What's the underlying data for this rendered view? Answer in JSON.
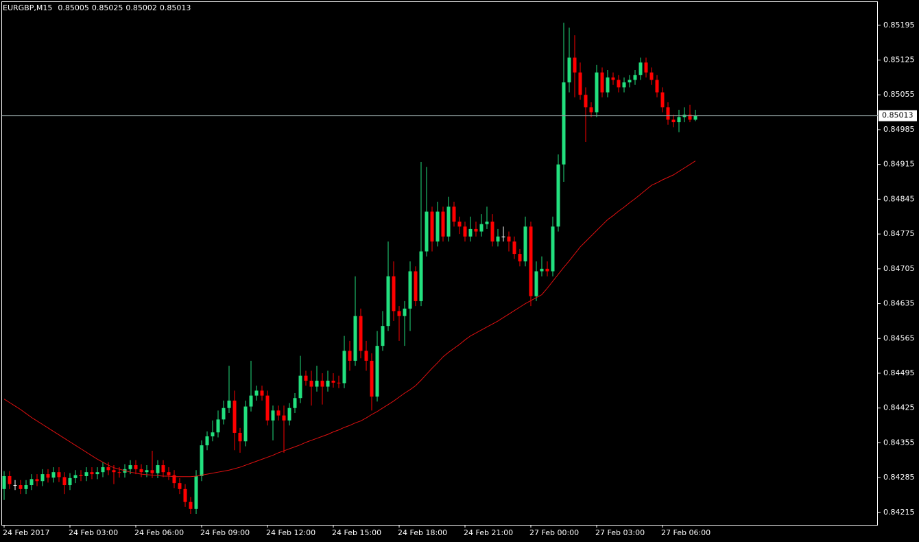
{
  "chart_data": {
    "type": "candlestick",
    "symbol": "EURGBP,M15",
    "categories": [
      "24 Feb 2017",
      null,
      null,
      null,
      null,
      null,
      null,
      null,
      null,
      null,
      null,
      null,
      "24 Feb 03:00",
      null,
      null,
      null,
      null,
      null,
      null,
      null,
      null,
      null,
      null,
      null,
      "24 Feb 06:00",
      null,
      null,
      null,
      null,
      null,
      null,
      null,
      null,
      null,
      null,
      null,
      "24 Feb 09:00",
      null,
      null,
      null,
      null,
      null,
      null,
      null,
      null,
      null,
      null,
      null,
      "24 Feb 12:00",
      null,
      null,
      null,
      null,
      null,
      null,
      null,
      null,
      null,
      null,
      null,
      "24 Feb 15:00",
      null,
      null,
      null,
      null,
      null,
      null,
      null,
      null,
      null,
      null,
      null,
      "24 Feb 18:00",
      null,
      null,
      null,
      null,
      null,
      null,
      null,
      null,
      null,
      null,
      null,
      "24 Feb 21:00",
      null,
      null,
      null,
      null,
      null,
      null,
      null,
      null,
      null,
      null,
      null,
      "27 Feb 00:00",
      null,
      null,
      null,
      null,
      null,
      null,
      null,
      null,
      null,
      null,
      null,
      "27 Feb 03:00",
      null,
      null,
      null,
      null,
      null,
      null,
      null,
      null,
      null,
      null,
      null,
      "27 Feb 06:00",
      null,
      null,
      null,
      null,
      null,
      null
    ],
    "open": [
      0.84262,
      0.84288,
      0.8427,
      0.8427,
      0.84262,
      0.8427,
      0.84282,
      0.84278,
      0.84292,
      0.84285,
      0.84296,
      0.84286,
      0.8427,
      0.84284,
      0.8429,
      0.84288,
      0.84296,
      0.84292,
      0.84296,
      0.84306,
      0.843,
      0.84296,
      0.84295,
      0.84302,
      0.8431,
      0.84302,
      0.84296,
      0.843,
      0.84294,
      0.8431,
      0.84296,
      0.8429,
      0.84274,
      0.84262,
      0.84236,
      0.84222,
      0.84288,
      0.8435,
      0.84368,
      0.84376,
      0.84402,
      0.84425,
      0.8444,
      0.84375,
      0.84358,
      0.84428,
      0.8445,
      0.8446,
      0.8445,
      0.844,
      0.8442,
      0.8441,
      0.844,
      0.84425,
      0.84445,
      0.8449,
      0.8448,
      0.84468,
      0.8448,
      0.84468,
      0.8448,
      0.84476,
      0.84475,
      0.8454,
      0.8452,
      0.8461,
      0.8454,
      0.8452,
      0.84448,
      0.8455,
      0.8459,
      0.8469,
      0.8462,
      0.8461,
      0.84625,
      0.847,
      0.8464,
      0.8474,
      0.8482,
      0.8476,
      0.8482,
      0.8477,
      0.8483,
      0.848,
      0.8479,
      0.8477,
      0.84785,
      0.8478,
      0.84795,
      0.848,
      0.8476,
      0.8477,
      0.8477,
      0.8476,
      0.84735,
      0.8472,
      0.8479,
      0.8465,
      0.847,
      0.84705,
      0.847,
      0.8479,
      0.84915,
      0.8508,
      0.8513,
      0.851,
      0.85055,
      0.8503,
      0.8502,
      0.851,
      0.8506,
      0.8509,
      0.85085,
      0.8507,
      0.8508,
      0.85085,
      0.85095,
      0.8512,
      0.851,
      0.85085,
      0.8506,
      0.8503,
      0.85005,
      0.85,
      0.8501,
      0.85015,
      0.85005
    ],
    "high": [
      0.84298,
      0.84298,
      0.8428,
      0.8428,
      0.8428,
      0.84292,
      0.84292,
      0.84302,
      0.84302,
      0.84306,
      0.84306,
      0.84296,
      0.84294,
      0.843,
      0.843,
      0.84306,
      0.84306,
      0.84306,
      0.84316,
      0.84316,
      0.8431,
      0.84306,
      0.84312,
      0.8432,
      0.8432,
      0.84312,
      0.8431,
      0.84339,
      0.8432,
      0.8432,
      0.84306,
      0.843,
      0.84284,
      0.84272,
      0.84246,
      0.843,
      0.8436,
      0.84378,
      0.844,
      0.8442,
      0.8444,
      0.8451,
      0.8446,
      0.84385,
      0.8444,
      0.8452,
      0.8447,
      0.8447,
      0.8446,
      0.8443,
      0.8443,
      0.8443,
      0.84435,
      0.84455,
      0.8453,
      0.845,
      0.845,
      0.8451,
      0.84495,
      0.845,
      0.84495,
      0.8449,
      0.8457,
      0.8456,
      0.8469,
      0.84625,
      0.8456,
      0.84535,
      0.8458,
      0.8462,
      0.8476,
      0.8472,
      0.8463,
      0.8464,
      0.8472,
      0.8471,
      0.8492,
      0.8491,
      0.8483,
      0.8484,
      0.8483,
      0.8485,
      0.8484,
      0.8481,
      0.848,
      0.8481,
      0.848,
      0.84815,
      0.8483,
      0.84815,
      0.84785,
      0.8479,
      0.8478,
      0.8477,
      0.84745,
      0.8481,
      0.848,
      0.8472,
      0.8473,
      0.8472,
      0.8481,
      0.84935,
      0.852,
      0.8519,
      0.85175,
      0.8512,
      0.8507,
      0.8504,
      0.85115,
      0.8511,
      0.85105,
      0.851,
      0.85095,
      0.8509,
      0.85095,
      0.85105,
      0.8513,
      0.8513,
      0.8511,
      0.85095,
      0.8507,
      0.8504,
      0.85015,
      0.85025,
      0.8503,
      0.85035,
      0.85025
    ],
    "low": [
      0.8424,
      0.84262,
      0.8426,
      0.84252,
      0.84252,
      0.8426,
      0.84268,
      0.84268,
      0.84275,
      0.84275,
      0.84276,
      0.84252,
      0.8426,
      0.84274,
      0.84278,
      0.84278,
      0.84282,
      0.84282,
      0.84286,
      0.8429,
      0.84272,
      0.84285,
      0.84285,
      0.84292,
      0.84292,
      0.84286,
      0.84286,
      0.84284,
      0.84284,
      0.84286,
      0.8428,
      0.84264,
      0.84252,
      0.84226,
      0.84212,
      0.84212,
      0.84278,
      0.8434,
      0.84358,
      0.84366,
      0.84392,
      0.84415,
      0.8434,
      0.84335,
      0.84348,
      0.84418,
      0.8444,
      0.8444,
      0.8439,
      0.8436,
      0.844,
      0.84335,
      0.8439,
      0.84415,
      0.84435,
      0.8447,
      0.8443,
      0.84458,
      0.84432,
      0.84458,
      0.84466,
      0.84465,
      0.84465,
      0.845,
      0.8451,
      0.84525,
      0.845,
      0.8442,
      0.84438,
      0.8454,
      0.8458,
      0.846,
      0.8456,
      0.8455,
      0.8458,
      0.8463,
      0.8463,
      0.8473,
      0.8474,
      0.8475,
      0.8476,
      0.8476,
      0.8479,
      0.84775,
      0.8476,
      0.8476,
      0.8477,
      0.8477,
      0.84785,
      0.8475,
      0.8475,
      0.8476,
      0.8474,
      0.84725,
      0.8471,
      0.8471,
      0.8463,
      0.8464,
      0.8469,
      0.8469,
      0.8469,
      0.8478,
      0.8488,
      0.8506,
      0.8505,
      0.85045,
      0.8496,
      0.8501,
      0.8501,
      0.8505,
      0.8505,
      0.85075,
      0.8506,
      0.8506,
      0.8507,
      0.85075,
      0.85085,
      0.8509,
      0.85075,
      0.8505,
      0.8502,
      0.84995,
      0.8499,
      0.8498,
      0.85,
      0.85,
      0.85002
    ],
    "close": [
      0.84288,
      0.84272,
      0.8427,
      0.84262,
      0.8427,
      0.84282,
      0.84278,
      0.84292,
      0.84285,
      0.84296,
      0.84286,
      0.8427,
      0.84284,
      0.8429,
      0.84288,
      0.84296,
      0.84292,
      0.84296,
      0.84306,
      0.843,
      0.84296,
      0.84295,
      0.84302,
      0.8431,
      0.84302,
      0.84296,
      0.843,
      0.84294,
      0.8431,
      0.84296,
      0.8429,
      0.84274,
      0.84262,
      0.84236,
      0.84222,
      0.84288,
      0.8435,
      0.84368,
      0.84376,
      0.84402,
      0.84425,
      0.8444,
      0.84375,
      0.84358,
      0.84428,
      0.8445,
      0.8446,
      0.8445,
      0.844,
      0.8442,
      0.8441,
      0.844,
      0.84425,
      0.84445,
      0.8449,
      0.8448,
      0.84468,
      0.8448,
      0.84468,
      0.8448,
      0.84476,
      0.84475,
      0.8454,
      0.8452,
      0.8461,
      0.8454,
      0.8452,
      0.84448,
      0.8455,
      0.8459,
      0.8469,
      0.8462,
      0.8461,
      0.84625,
      0.847,
      0.8464,
      0.8474,
      0.8482,
      0.8476,
      0.8482,
      0.8477,
      0.8483,
      0.848,
      0.8479,
      0.8477,
      0.84785,
      0.8478,
      0.84795,
      0.848,
      0.8476,
      0.8477,
      0.8477,
      0.8476,
      0.84735,
      0.8472,
      0.8479,
      0.8465,
      0.847,
      0.84705,
      0.847,
      0.8479,
      0.84915,
      0.8508,
      0.8513,
      0.851,
      0.85055,
      0.8503,
      0.8502,
      0.851,
      0.8506,
      0.8509,
      0.85085,
      0.8507,
      0.8508,
      0.85085,
      0.85095,
      0.8512,
      0.851,
      0.85085,
      0.8506,
      0.8503,
      0.85005,
      0.85,
      0.8501,
      0.85015,
      0.85005,
      0.85013
    ],
    "moving_average": {
      "color": "#e01010",
      "values": [
        0.84443,
        0.84436,
        0.84429,
        0.84422,
        0.84414,
        0.84406,
        0.84399,
        0.84392,
        0.84385,
        0.84378,
        0.84371,
        0.84364,
        0.84357,
        0.8435,
        0.84343,
        0.84336,
        0.84329,
        0.84322,
        0.84316,
        0.8431,
        0.84305,
        0.84302,
        0.84299,
        0.84296,
        0.84294,
        0.84292,
        0.84291,
        0.8429,
        0.84289,
        0.84288,
        0.84288,
        0.84287,
        0.84287,
        0.84287,
        0.84287,
        0.84288,
        0.8429,
        0.84292,
        0.84294,
        0.84296,
        0.84298,
        0.843,
        0.84303,
        0.84306,
        0.8431,
        0.84314,
        0.84318,
        0.84322,
        0.84326,
        0.8433,
        0.84335,
        0.84339,
        0.84343,
        0.84347,
        0.84351,
        0.84356,
        0.8436,
        0.84364,
        0.84368,
        0.84372,
        0.84377,
        0.84381,
        0.84386,
        0.8439,
        0.84395,
        0.84399,
        0.84405,
        0.84412,
        0.84418,
        0.84425,
        0.84432,
        0.84439,
        0.84447,
        0.84455,
        0.84462,
        0.8447,
        0.84481,
        0.84493,
        0.84505,
        0.84516,
        0.84528,
        0.84537,
        0.84545,
        0.84553,
        0.84562,
        0.8457,
        0.84576,
        0.84582,
        0.84588,
        0.84594,
        0.846,
        0.84607,
        0.84614,
        0.84621,
        0.84628,
        0.84635,
        0.84641,
        0.84647,
        0.84653,
        0.84666,
        0.8468,
        0.84694,
        0.84708,
        0.84721,
        0.84735,
        0.84749,
        0.8476,
        0.84771,
        0.84782,
        0.84793,
        0.84804,
        0.84812,
        0.84821,
        0.84829,
        0.84838,
        0.84846,
        0.84855,
        0.84864,
        0.84873,
        0.84878,
        0.84884,
        0.84889,
        0.84894,
        0.84901,
        0.84908,
        0.84915,
        0.84922
      ]
    },
    "up_color": "#22e07e",
    "down_color": "#ff0000",
    "doji_color": "#ffffff",
    "price_line_color": "#8c9c9c",
    "ylim": [
      0.8419,
      0.85243
    ],
    "yticks": [
      0.85195,
      0.85125,
      0.85055,
      0.84985,
      0.84915,
      0.84845,
      0.84775,
      0.84705,
      0.84635,
      0.84565,
      0.84495,
      0.84425,
      0.84355,
      0.84285,
      0.84215
    ],
    "grid": false
  }
}
